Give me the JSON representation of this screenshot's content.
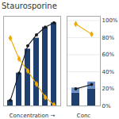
{
  "chart_data": [
    {
      "type": "bar",
      "title": "Staurosporine",
      "xlabel": "Concentration →",
      "categories": [
        null,
        null,
        null,
        null,
        null,
        null
      ],
      "series": [
        {
          "type": "bar",
          "color": "#1f3f6e",
          "values": [
            5,
            30,
            52,
            62,
            72,
            76
          ]
        },
        {
          "type": "line",
          "color": "#1a1a1a",
          "marker": "circle",
          "values": [
            5,
            30,
            55,
            65,
            72,
            76
          ]
        },
        {
          "type": "line",
          "color": "#f0a800",
          "marker": "diamond",
          "values": [
            62,
            43,
            32,
            20,
            8,
            1
          ]
        }
      ],
      "ylim": [
        0,
        82
      ],
      "tick_labels": false,
      "grid": false
    },
    {
      "type": "bar",
      "xlabel": "Conc",
      "categories": [
        null,
        null
      ],
      "series": [
        {
          "type": "bar",
          "color": "#1f3f6e",
          "values": [
            15,
            20
          ]
        },
        {
          "type": "bar",
          "color": "#6a90c8",
          "values": [
            6,
            8
          ]
        },
        {
          "type": "line",
          "color": "#1a1a1a",
          "marker": "circle",
          "values": [
            20,
            25
          ]
        },
        {
          "type": "line",
          "color": "#f0a800",
          "marker": "diamond",
          "values": [
            96,
            84
          ]
        }
      ],
      "stacked": true,
      "ylim": [
        0,
        105
      ],
      "yticks": [
        {
          "value": 0,
          "label": "0%"
        },
        {
          "value": 20,
          "label": "20%"
        },
        {
          "value": 40,
          "label": "40%"
        },
        {
          "value": 60,
          "label": "60%"
        },
        {
          "value": 80,
          "label": "80%"
        },
        {
          "value": 100,
          "label": "100%"
        }
      ],
      "tick_labels": "y",
      "grid": true
    }
  ]
}
